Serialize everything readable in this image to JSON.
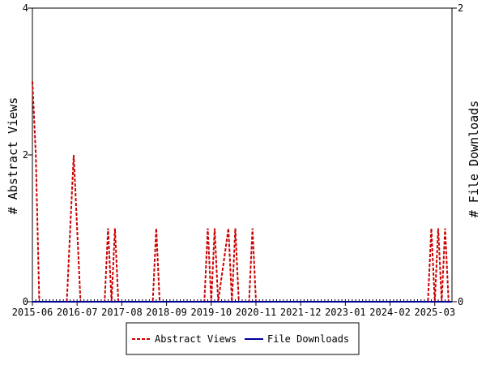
{
  "chart_data": {
    "type": "line",
    "title": "",
    "y_left_label": "# Abstract Views",
    "y_right_label": "# File Downloads",
    "y_left_ticks": [
      "0",
      "2",
      "4"
    ],
    "y_right_ticks": [
      "0",
      "2"
    ],
    "y_left_lim": [
      0,
      4
    ],
    "y_right_lim": [
      0,
      2
    ],
    "x_range": [
      "2015-06",
      "2025-08"
    ],
    "x_tick_labels": [
      "2015-06",
      "2016-07",
      "2017-08",
      "2018-09",
      "2019-10",
      "2020-11",
      "2021-12",
      "2023-01",
      "2024-02",
      "2025-03"
    ],
    "legend_position": "bottom",
    "series": [
      {
        "name": "Abstract Views",
        "color": "#cc0000",
        "style": "dashed",
        "axis": "left",
        "points": [
          [
            "2015-06",
            3
          ],
          [
            "2015-07",
            2
          ],
          [
            "2015-08",
            0
          ],
          [
            "2016-04",
            0
          ],
          [
            "2016-05",
            1
          ],
          [
            "2016-06",
            2
          ],
          [
            "2016-07",
            1
          ],
          [
            "2016-08",
            0
          ],
          [
            "2017-03",
            0
          ],
          [
            "2017-04",
            1
          ],
          [
            "2017-05",
            0
          ],
          [
            "2017-06",
            1
          ],
          [
            "2017-07",
            0
          ],
          [
            "2018-05",
            0
          ],
          [
            "2018-06",
            1
          ],
          [
            "2018-07",
            0
          ],
          [
            "2019-08",
            0
          ],
          [
            "2019-09",
            1
          ],
          [
            "2019-10",
            0
          ],
          [
            "2019-11",
            1
          ],
          [
            "2019-12",
            0
          ],
          [
            "2020-03",
            1
          ],
          [
            "2020-04",
            0
          ],
          [
            "2020-05",
            1
          ],
          [
            "2020-06",
            0
          ],
          [
            "2020-09",
            0
          ],
          [
            "2020-10",
            1
          ],
          [
            "2020-11",
            0
          ],
          [
            "2025-01",
            0
          ],
          [
            "2025-02",
            1
          ],
          [
            "2025-03",
            0
          ],
          [
            "2025-04",
            1
          ],
          [
            "2025-05",
            0
          ],
          [
            "2025-06",
            1
          ],
          [
            "2025-07",
            0
          ]
        ]
      },
      {
        "name": "File Downloads",
        "color": "#000099",
        "style": "solid",
        "axis": "right",
        "points": [
          [
            "2015-06",
            0
          ],
          [
            "2025-08",
            0
          ]
        ]
      }
    ]
  }
}
